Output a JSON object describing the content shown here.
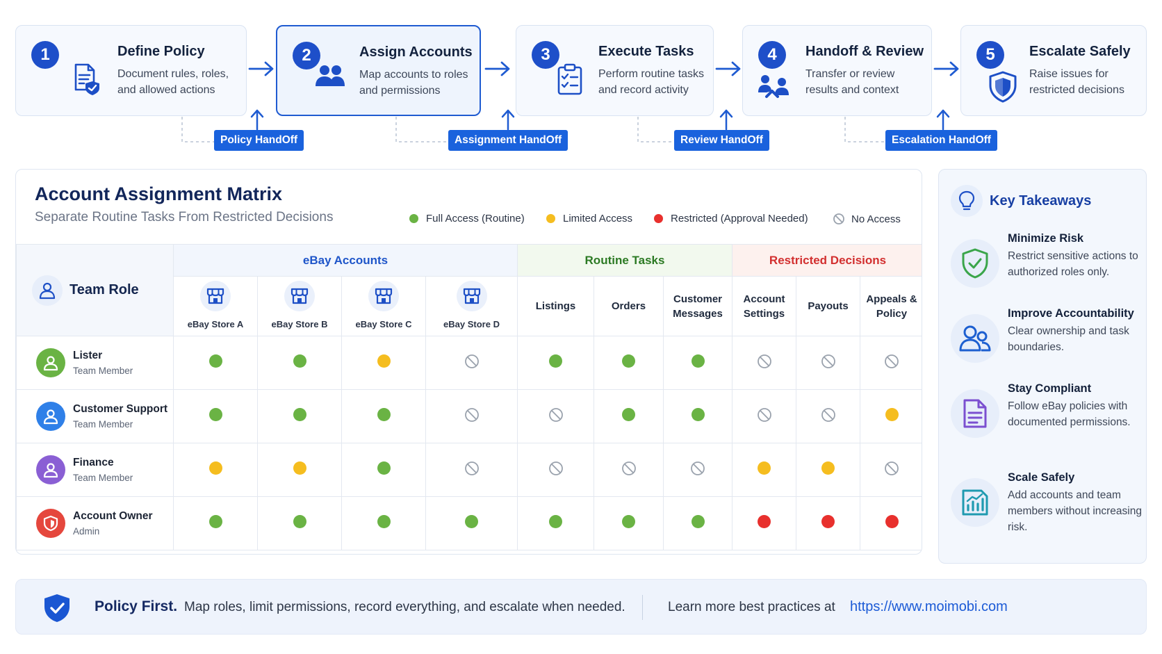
{
  "steps": [
    {
      "num": "1",
      "title": "Define Policy",
      "desc": "Document rules, roles, and allowed actions",
      "icon": "document-shield-icon"
    },
    {
      "num": "2",
      "title": "Assign Accounts",
      "desc": "Map accounts to roles and permissions",
      "icon": "users-icon"
    },
    {
      "num": "3",
      "title": "Execute Tasks",
      "desc": "Perform routine tasks and record activity",
      "icon": "clipboard-checklist-icon"
    },
    {
      "num": "4",
      "title": "Handoff & Review",
      "desc": "Transfer or review results and context",
      "icon": "handoff-users-icon"
    },
    {
      "num": "5",
      "title": "Escalate Safely",
      "desc": "Raise issues for restricted decisions",
      "icon": "shield-icon"
    }
  ],
  "handoffs": [
    "Policy HandOff",
    "Assignment HandOff",
    "Review HandOff",
    "Escalation HandOff"
  ],
  "matrix": {
    "title": "Account Assignment Matrix",
    "subtitle": "Separate Routine Tasks From Restricted Decisions",
    "legend": [
      {
        "label": "Full Access (Routine)",
        "color": "#6ab344"
      },
      {
        "label": "Limited Access",
        "color": "#f5bd1f"
      },
      {
        "label": "Restricted (Approval Needed)",
        "color": "#e8302d"
      },
      {
        "label": "No Access",
        "color": "#9aa2ad"
      }
    ],
    "role_header": "Team Role",
    "groups": {
      "ebay": "eBay Accounts",
      "routine": "Routine Tasks",
      "restricted": "Restricted Decisions"
    },
    "columns": [
      "eBay Store A",
      "eBay Store B",
      "eBay Store C",
      "eBay Store D",
      "Listings",
      "Orders",
      "Customer Messages",
      "Account Settings",
      "Payouts",
      "Appeals & Policy"
    ],
    "roles": [
      {
        "name": "Lister",
        "sub": "Team Member",
        "color": "#6ab344",
        "cells": [
          "full",
          "full",
          "limited",
          "none",
          "full",
          "full",
          "full",
          "none",
          "none",
          "none"
        ]
      },
      {
        "name": "Customer Support",
        "sub": "Team Member",
        "color": "#2f80e8",
        "cells": [
          "full",
          "full",
          "full",
          "none",
          "none",
          "full",
          "full",
          "none",
          "none",
          "limited"
        ]
      },
      {
        "name": "Finance",
        "sub": "Team Member",
        "color": "#8a5fd4",
        "cells": [
          "limited",
          "limited",
          "full",
          "none",
          "none",
          "none",
          "none",
          "limited",
          "limited",
          "none"
        ]
      },
      {
        "name": "Account Owner",
        "sub": "Admin",
        "color": "#e5473d",
        "cells": [
          "full",
          "full",
          "full",
          "full",
          "full",
          "full",
          "full",
          "restricted",
          "restricted",
          "restricted"
        ]
      }
    ],
    "status_colors": {
      "full": "#6ab344",
      "limited": "#f5bd1f",
      "restricted": "#e8302d",
      "none": "#9aa2ad"
    }
  },
  "takeaways": {
    "title": "Key Takeaways",
    "items": [
      {
        "title": "Minimize Risk",
        "desc": "Restrict sensitive actions to authorized roles only.",
        "icon": "shield-check-icon",
        "color": "#3aa54a"
      },
      {
        "title": "Improve Accountability",
        "desc": "Clear ownership and task boundaries.",
        "icon": "users-icon",
        "color": "#1d5fd0"
      },
      {
        "title": "Stay Compliant",
        "desc": "Follow eBay policies with documented permissions.",
        "icon": "document-icon",
        "color": "#7b4fd0"
      },
      {
        "title": "Scale Safely",
        "desc": "Add accounts and team members without increasing risk.",
        "icon": "chart-icon",
        "color": "#1f9ab0"
      }
    ]
  },
  "footer": {
    "strong": "Policy First.",
    "text": "Map roles, limit permissions, record everything, and escalate when needed.",
    "learn": "Learn more best practices at",
    "link": "https://www.moimobi.com"
  }
}
